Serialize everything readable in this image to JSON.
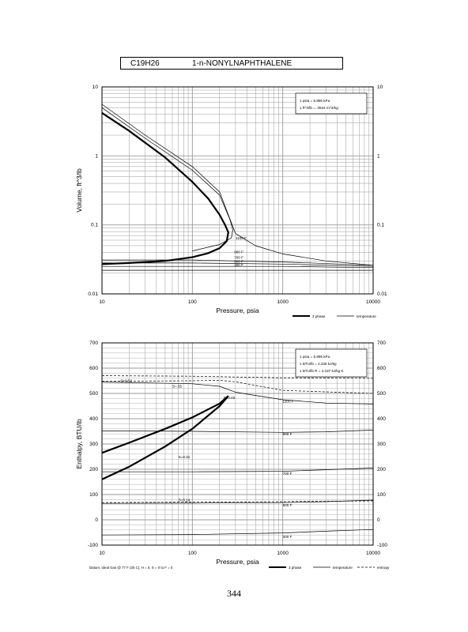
{
  "header": {
    "formula": "C19H26",
    "compound": "1-n-NONYLNAPHTHALENE"
  },
  "page_number": "344",
  "chart_data": [
    {
      "type": "line",
      "xlabel": "Pressure,  psia",
      "ylabel": "Volume,  ft^3/lb",
      "x_scale": "log",
      "y_scale": "log",
      "xlim": [
        10,
        10000
      ],
      "ylim": [
        0.01,
        10
      ],
      "x_ticks": [
        "10",
        "100",
        "1000",
        "10000"
      ],
      "y_ticks": [
        "0.01",
        "0.1",
        "1",
        "10"
      ],
      "y_ticks_right": [
        "0.01",
        "0.1",
        "1",
        "10"
      ],
      "grid": true,
      "conversion_lines": [
        "1 psia  =  6.895 kPa",
        "1 ft^3/lb  =  .0624 m^3/kg"
      ],
      "legend": [
        {
          "label": "2 phase",
          "style": "thick"
        },
        {
          "label": "temperature",
          "style": "thin"
        }
      ],
      "isotherm_labels": [
        "1100 F",
        "900 F",
        "700 F",
        "500 F",
        "300 F"
      ],
      "series": [
        {
          "name": "2 phase",
          "x": [
            10,
            20,
            50,
            100,
            150,
            200,
            230,
            250,
            240,
            200,
            150,
            100,
            50,
            20,
            10
          ],
          "y": [
            4.2,
            2.3,
            0.95,
            0.42,
            0.24,
            0.14,
            0.1,
            0.078,
            0.058,
            0.046,
            0.039,
            0.034,
            0.03,
            0.028,
            0.027
          ]
        },
        {
          "name": "1100 F",
          "x": [
            10,
            30,
            100,
            200,
            300,
            500,
            1000,
            3000,
            10000
          ],
          "y": [
            5.6,
            2.0,
            0.7,
            0.3,
            0.075,
            0.05,
            0.038,
            0.03,
            0.026
          ]
        },
        {
          "name": "900 F",
          "x": [
            10,
            30,
            100,
            200,
            260,
            280,
            270,
            200,
            100
          ],
          "y": [
            5.0,
            1.8,
            0.62,
            0.27,
            0.12,
            0.085,
            0.065,
            0.052,
            0.042
          ]
        },
        {
          "name": "900 F liquid",
          "x": [
            10,
            100,
            1000,
            10000
          ],
          "y": [
            0.031,
            0.031,
            0.029,
            0.026
          ]
        },
        {
          "name": "700 F",
          "x": [
            10,
            100,
            1000,
            10000
          ],
          "y": [
            0.028,
            0.028,
            0.027,
            0.025
          ]
        },
        {
          "name": "500 F",
          "x": [
            10,
            100,
            1000,
            10000
          ],
          "y": [
            0.025,
            0.025,
            0.025,
            0.024
          ]
        },
        {
          "name": "300 F",
          "x": [
            10,
            100,
            1000,
            10000
          ],
          "y": [
            0.022,
            0.022,
            0.022,
            0.022
          ]
        }
      ]
    },
    {
      "type": "line",
      "xlabel": "Pressure,  psia",
      "ylabel": "Enthalpy,  BTU/lb",
      "x_scale": "log",
      "xlim": [
        10,
        10000
      ],
      "ylim": [
        -100,
        700
      ],
      "x_ticks": [
        "10",
        "100",
        "1000",
        "10000"
      ],
      "y_ticks": [
        "-100",
        "0",
        "100",
        "200",
        "300",
        "400",
        "500",
        "600",
        "700"
      ],
      "y_ticks_right": [
        "-100",
        "0",
        "100",
        "200",
        "300",
        "400",
        "500",
        "600",
        "700"
      ],
      "grid": true,
      "conversion_lines": [
        "1 psia  =  6.895 kPa",
        "1 BTU/lb  =  2.326 kJ/kg",
        "1 BTU/lb R  =  4.187 kJ/kg K"
      ],
      "footnote": "Datum: Ideal Gas @ 77 F (25 C),  H = 0,  S = 0 to F = 0",
      "legend": [
        {
          "label": "2 phase",
          "style": "thick"
        },
        {
          "label": "temperature",
          "style": "thin"
        },
        {
          "label": "entropy",
          "style": "dashed"
        }
      ],
      "entropy_labels": [
        "S=0.52",
        "S=.55",
        "S=0.48",
        "S=0.31",
        "S=0.14"
      ],
      "isotherm_labels": [
        "1100 F",
        "900 F",
        "700 F",
        "500 F",
        "300 F"
      ],
      "series": [
        {
          "name": "2 phase vapor",
          "x": [
            10,
            20,
            50,
            100,
            200,
            250
          ],
          "y": [
            265,
            305,
            360,
            405,
            460,
            490
          ]
        },
        {
          "name": "2 phase liquid",
          "x": [
            10,
            20,
            50,
            100,
            200,
            250
          ],
          "y": [
            160,
            210,
            290,
            360,
            450,
            490
          ]
        },
        {
          "name": "1100 F",
          "x": [
            10,
            100,
            200,
            300,
            500,
            1000,
            3000,
            10000
          ],
          "y": [
            545,
            538,
            528,
            505,
            492,
            475,
            462,
            458
          ]
        },
        {
          "name": "900 F",
          "x": [
            10,
            100,
            1000,
            3000,
            10000
          ],
          "y": [
            352,
            350,
            346,
            348,
            355
          ]
        },
        {
          "name": "700 F",
          "x": [
            10,
            100,
            1000,
            3000,
            10000
          ],
          "y": [
            190,
            190,
            192,
            198,
            205
          ]
        },
        {
          "name": "500 F",
          "x": [
            10,
            100,
            1000,
            3000,
            10000
          ],
          "y": [
            65,
            66,
            68,
            72,
            78
          ]
        },
        {
          "name": "300 F",
          "x": [
            10,
            100,
            1000,
            3000,
            10000
          ],
          "y": [
            -60,
            -58,
            -52,
            -45,
            -38
          ]
        },
        {
          "name": "S=0.52",
          "x": [
            10,
            100,
            200,
            300,
            1000,
            10000
          ],
          "y": [
            548,
            550,
            552,
            546,
            512,
            500
          ]
        },
        {
          "name": "S=.55",
          "x": [
            10,
            100,
            300,
            1000,
            10000
          ],
          "y": [
            570,
            568,
            565,
            562,
            560
          ]
        },
        {
          "name": "S=0.14",
          "x": [
            10,
            100,
            1000,
            10000
          ],
          "y": [
            68,
            70,
            72,
            75
          ]
        }
      ]
    }
  ],
  "colors": {
    "ink": "#000000",
    "grid": "#9a9a9a"
  }
}
